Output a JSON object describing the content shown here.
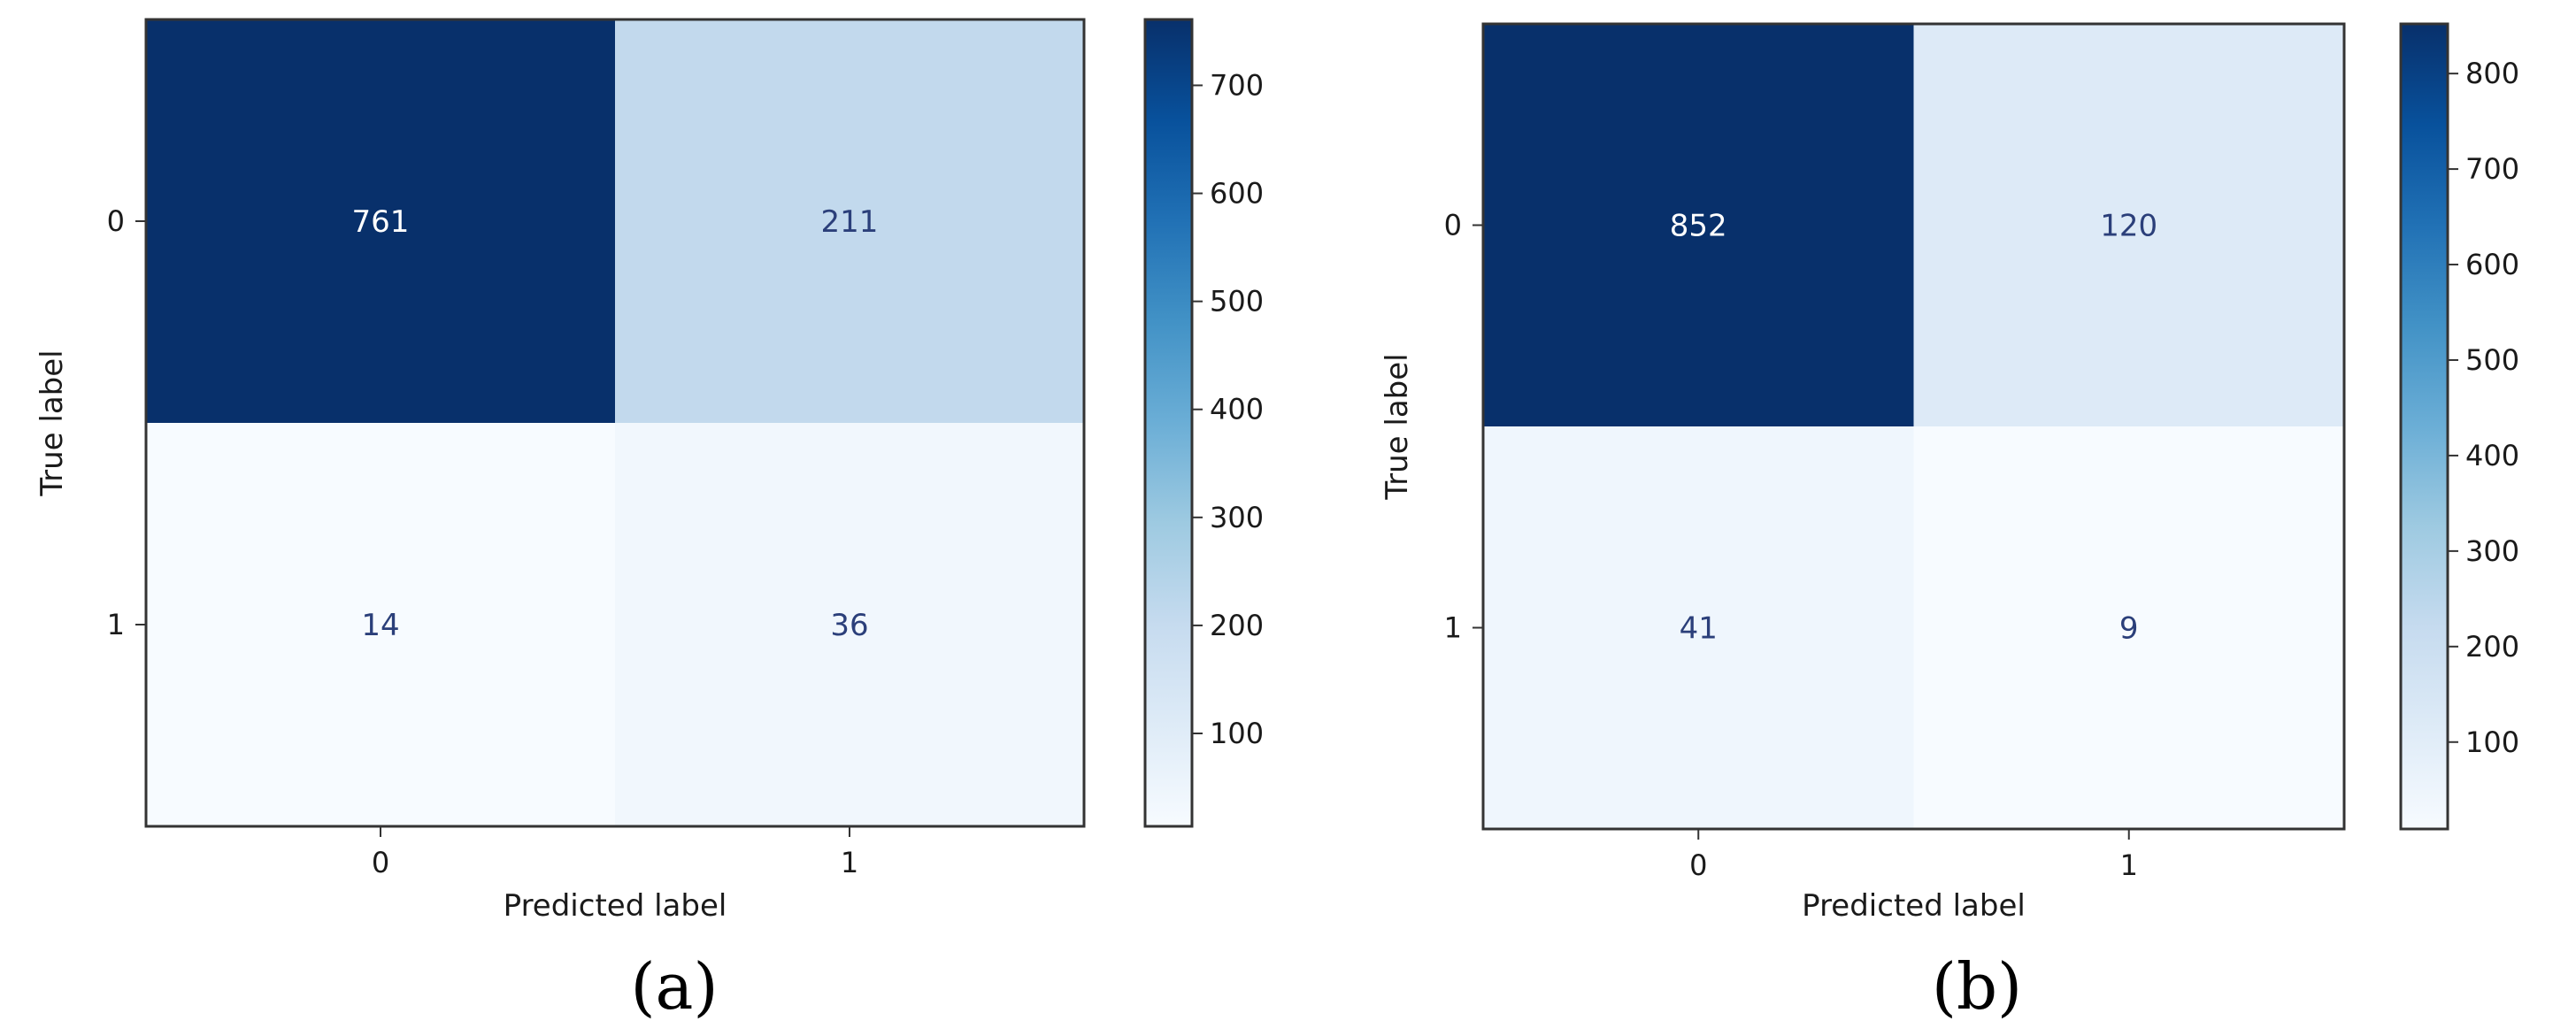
{
  "chart_data": [
    {
      "type": "heatmap",
      "caption": "(a)",
      "xlabel": "Predicted label",
      "ylabel": "True label",
      "x_categories": [
        "0",
        "1"
      ],
      "y_categories": [
        "0",
        "1"
      ],
      "matrix": [
        [
          761,
          211
        ],
        [
          14,
          36
        ]
      ],
      "colormap": "Blues",
      "colorbar": {
        "range": [
          14,
          761
        ],
        "ticks": [
          100,
          200,
          300,
          400,
          500,
          600,
          700
        ],
        "tick_labels": [
          "100",
          "200",
          "300",
          "400",
          "500",
          "600",
          "700"
        ]
      },
      "text_color_dark_cell": "#ffffff",
      "text_color_light_cell": "#2b3f7a"
    },
    {
      "type": "heatmap",
      "caption": "(b)",
      "xlabel": "Predicted label",
      "ylabel": "True label",
      "x_categories": [
        "0",
        "1"
      ],
      "y_categories": [
        "0",
        "1"
      ],
      "matrix": [
        [
          852,
          120
        ],
        [
          41,
          9
        ]
      ],
      "colormap": "Blues",
      "colorbar": {
        "range": [
          9,
          852
        ],
        "ticks": [
          100,
          200,
          300,
          400,
          500,
          600,
          700,
          800
        ],
        "tick_labels": [
          "100",
          "200",
          "300",
          "400",
          "500",
          "600",
          "700",
          "800"
        ]
      },
      "text_color_dark_cell": "#ffffff",
      "text_color_light_cell": "#2b3f7a"
    }
  ]
}
